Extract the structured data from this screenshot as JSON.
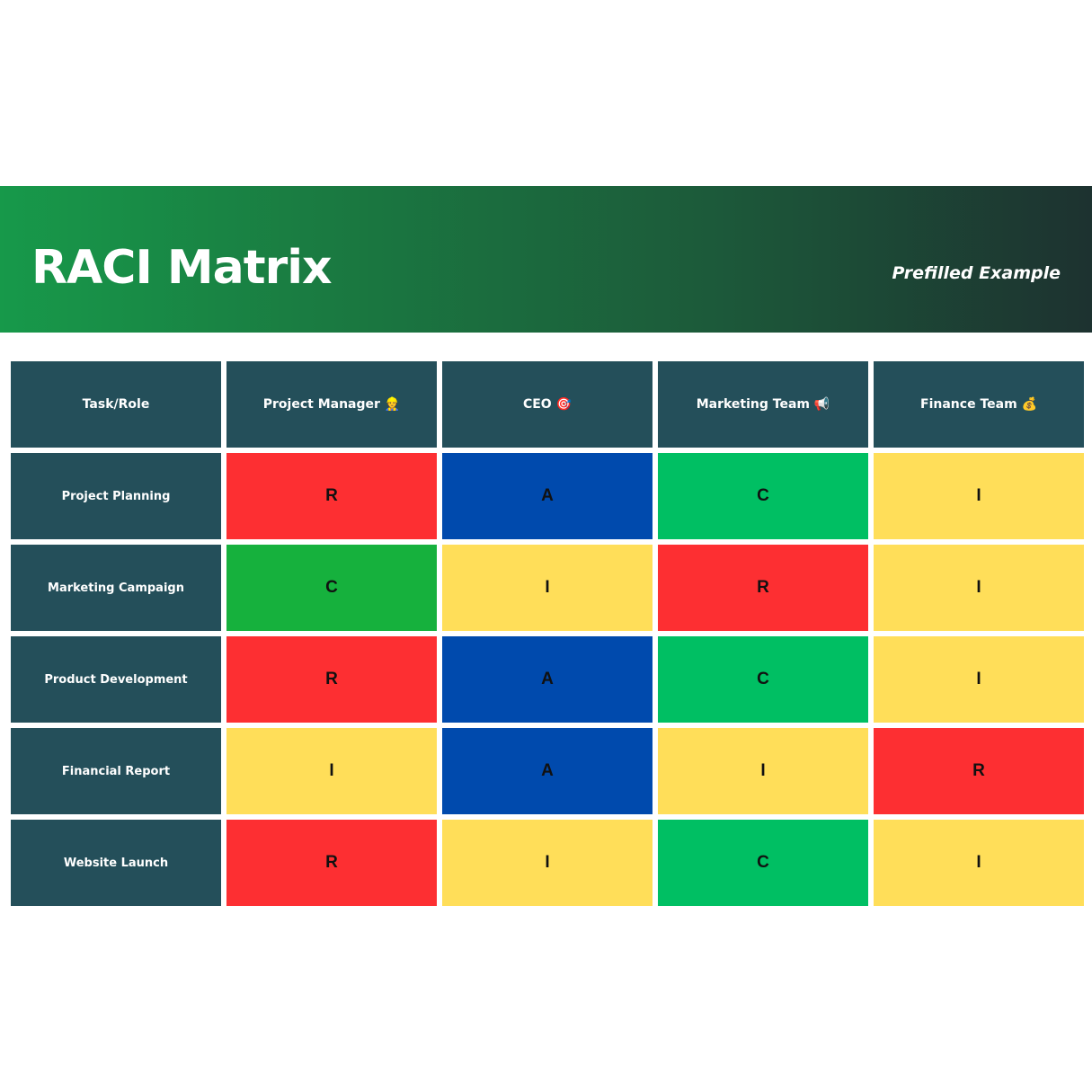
{
  "header": {
    "title": "RACI Matrix",
    "subtitle": "Prefilled Example"
  },
  "matrix": {
    "corner_label": "Task/Role",
    "roles": [
      "Project Manager 👷",
      "CEO 🎯",
      "Marketing Team 📢",
      "Finance Team 💰"
    ],
    "rows": [
      {
        "task": "Project Planning",
        "values": [
          "R",
          "A",
          "C",
          "I"
        ]
      },
      {
        "task": "Marketing Campaign",
        "values": [
          "C",
          "I",
          "R",
          "I"
        ]
      },
      {
        "task": "Product Development",
        "values": [
          "R",
          "A",
          "C",
          "I"
        ]
      },
      {
        "task": "Financial Report",
        "values": [
          "I",
          "A",
          "I",
          "R"
        ]
      },
      {
        "task": "Website Launch",
        "values": [
          "R",
          "I",
          "C",
          "I"
        ]
      }
    ]
  },
  "colors": {
    "header_cell": "#244f5a",
    "R": "#fd2f32",
    "A": "#004aad",
    "C": "#16b13d",
    "C_alt": "#00bf63",
    "I": "#ffde59"
  }
}
